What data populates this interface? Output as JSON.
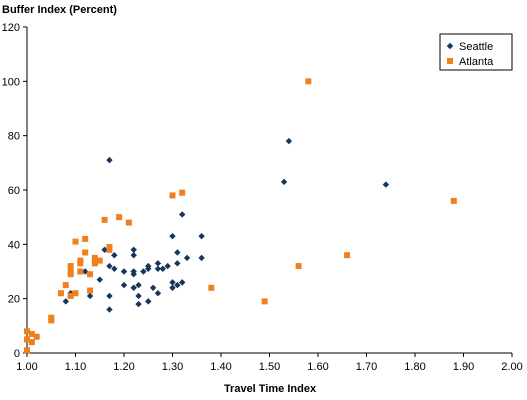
{
  "chart_data": {
    "type": "scatter",
    "ylabel": "Buffer Index (Percent)",
    "xlabel": "Travel Time Index",
    "xlim": [
      1.0,
      2.0
    ],
    "ylim": [
      0,
      120
    ],
    "x_ticks": [
      "1.00",
      "1.10",
      "1.20",
      "1.30",
      "1.40",
      "1.50",
      "1.60",
      "1.70",
      "1.80",
      "1.90",
      "2.00"
    ],
    "y_ticks": [
      "0",
      "20",
      "40",
      "60",
      "80",
      "100",
      "120"
    ],
    "grid": false,
    "legend_position": "top-right",
    "series": [
      {
        "name": "Seattle",
        "marker": "diamond",
        "color": "#17365d",
        "points": [
          [
            1.08,
            19
          ],
          [
            1.09,
            22
          ],
          [
            1.12,
            30
          ],
          [
            1.13,
            21
          ],
          [
            1.13,
            29
          ],
          [
            1.14,
            33
          ],
          [
            1.15,
            27
          ],
          [
            1.16,
            38
          ],
          [
            1.17,
            71
          ],
          [
            1.17,
            32
          ],
          [
            1.17,
            21
          ],
          [
            1.17,
            16
          ],
          [
            1.18,
            31
          ],
          [
            1.18,
            36
          ],
          [
            1.2,
            30
          ],
          [
            1.2,
            25
          ],
          [
            1.22,
            38
          ],
          [
            1.22,
            36
          ],
          [
            1.22,
            30
          ],
          [
            1.22,
            29
          ],
          [
            1.22,
            24
          ],
          [
            1.23,
            21
          ],
          [
            1.23,
            18
          ],
          [
            1.23,
            25
          ],
          [
            1.24,
            30
          ],
          [
            1.25,
            31
          ],
          [
            1.25,
            32
          ],
          [
            1.25,
            19
          ],
          [
            1.26,
            24
          ],
          [
            1.27,
            33
          ],
          [
            1.27,
            31
          ],
          [
            1.27,
            22
          ],
          [
            1.28,
            31
          ],
          [
            1.29,
            32
          ],
          [
            1.3,
            43
          ],
          [
            1.3,
            26
          ],
          [
            1.3,
            24
          ],
          [
            1.31,
            37
          ],
          [
            1.31,
            33
          ],
          [
            1.31,
            25
          ],
          [
            1.32,
            51
          ],
          [
            1.32,
            26
          ],
          [
            1.33,
            35
          ],
          [
            1.36,
            43
          ],
          [
            1.36,
            35
          ],
          [
            1.53,
            63
          ],
          [
            1.54,
            78
          ],
          [
            1.74,
            62
          ]
        ]
      },
      {
        "name": "Atlanta",
        "marker": "square",
        "color": "#f07f1e",
        "points": [
          [
            1.0,
            8
          ],
          [
            1.0,
            5
          ],
          [
            1.0,
            1
          ],
          [
            1.01,
            7
          ],
          [
            1.01,
            4
          ],
          [
            1.02,
            6
          ],
          [
            1.05,
            13
          ],
          [
            1.05,
            12
          ],
          [
            1.07,
            22
          ],
          [
            1.08,
            25
          ],
          [
            1.09,
            32
          ],
          [
            1.09,
            30
          ],
          [
            1.09,
            29
          ],
          [
            1.09,
            21
          ],
          [
            1.1,
            41
          ],
          [
            1.1,
            22
          ],
          [
            1.11,
            34
          ],
          [
            1.11,
            33
          ],
          [
            1.11,
            30
          ],
          [
            1.12,
            42
          ],
          [
            1.12,
            37
          ],
          [
            1.13,
            29
          ],
          [
            1.13,
            23
          ],
          [
            1.14,
            35
          ],
          [
            1.14,
            33
          ],
          [
            1.15,
            34
          ],
          [
            1.16,
            49
          ],
          [
            1.17,
            39
          ],
          [
            1.17,
            38
          ],
          [
            1.19,
            50
          ],
          [
            1.21,
            48
          ],
          [
            1.3,
            58
          ],
          [
            1.32,
            59
          ],
          [
            1.38,
            24
          ],
          [
            1.49,
            19
          ],
          [
            1.56,
            32
          ],
          [
            1.58,
            100
          ],
          [
            1.66,
            36
          ],
          [
            1.88,
            56
          ]
        ]
      }
    ]
  }
}
